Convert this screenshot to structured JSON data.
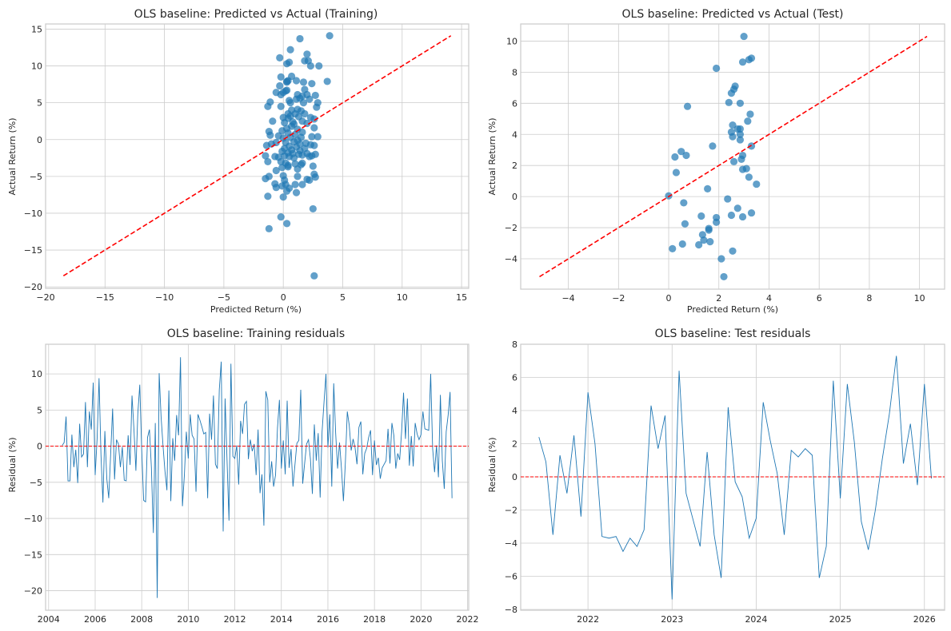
{
  "figure": {
    "background": "#ffffff",
    "colors": {
      "points": "#1f77b4",
      "reference": "#ff0000",
      "grid": "#cccccc"
    }
  },
  "chart_data": [
    {
      "id": "train-scatter",
      "type": "scatter",
      "title": "OLS baseline: Predicted vs Actual (Training)",
      "xlabel": "Predicted Return (%)",
      "ylabel": "Actual Return (%)",
      "xlim": [
        -20,
        15.6
      ],
      "ylim": [
        -20.2,
        15.7
      ],
      "xticks": [
        -20,
        -15,
        -10,
        -5,
        0,
        5,
        10,
        15
      ],
      "yticks": [
        -20,
        -15,
        -10,
        -5,
        0,
        5,
        10,
        15
      ],
      "grid": true,
      "reference_line": {
        "from": [
          -18.5,
          -18.5
        ],
        "to": [
          14.1,
          14.1
        ],
        "style": "dashed",
        "color": "#ff0000"
      },
      "points": [
        [
          3.9,
          14.1
        ],
        [
          1.4,
          13.7
        ],
        [
          0.6,
          12.2
        ],
        [
          2.0,
          11.6
        ],
        [
          -0.3,
          11.1
        ],
        [
          1.8,
          10.7
        ],
        [
          2.1,
          10.7
        ],
        [
          0.3,
          10.3
        ],
        [
          0.5,
          10.5
        ],
        [
          2.3,
          10.0
        ],
        [
          3.0,
          10.0
        ],
        [
          0.7,
          8.6
        ],
        [
          -0.2,
          8.5
        ],
        [
          1.7,
          7.8
        ],
        [
          3.7,
          7.9
        ],
        [
          0.3,
          7.9
        ],
        [
          0.3,
          7.8
        ],
        [
          2.4,
          7.6
        ],
        [
          1.1,
          8.0
        ],
        [
          0.4,
          8.0
        ],
        [
          -0.3,
          7.3
        ],
        [
          1.8,
          6.8
        ],
        [
          -0.6,
          6.4
        ],
        [
          0.2,
          6.6
        ],
        [
          0.0,
          6.4
        ],
        [
          0.3,
          6.7
        ],
        [
          -0.2,
          6.1
        ],
        [
          1.2,
          6.1
        ],
        [
          1.6,
          5.9
        ],
        [
          2.0,
          6.1
        ],
        [
          2.7,
          6.0
        ],
        [
          1.4,
          5.6
        ],
        [
          -1.3,
          4.5
        ],
        [
          -1.1,
          5.1
        ],
        [
          0.5,
          5.3
        ],
        [
          0.6,
          5.0
        ],
        [
          1.1,
          5.5
        ],
        [
          1.7,
          5.0
        ],
        [
          2.2,
          5.5
        ],
        [
          2.9,
          5.0
        ],
        [
          2.8,
          4.4
        ],
        [
          -0.2,
          4.5
        ],
        [
          0.7,
          4.0
        ],
        [
          1.2,
          4.1
        ],
        [
          1.5,
          3.9
        ],
        [
          1.0,
          3.5
        ],
        [
          0.4,
          3.5
        ],
        [
          0.0,
          3.0
        ],
        [
          0.6,
          3.2
        ],
        [
          1.3,
          3.1
        ],
        [
          1.8,
          3.5
        ],
        [
          2.3,
          3.0
        ],
        [
          2.6,
          2.8
        ],
        [
          0.4,
          2.9
        ],
        [
          0.8,
          2.4
        ],
        [
          -0.9,
          2.5
        ],
        [
          0.1,
          2.3
        ],
        [
          0.9,
          2.1
        ],
        [
          1.6,
          2.5
        ],
        [
          2.0,
          2.2
        ],
        [
          2.6,
          1.6
        ],
        [
          0.3,
          1.5
        ],
        [
          0.7,
          1.8
        ],
        [
          1.2,
          1.4
        ],
        [
          1.6,
          1.0
        ],
        [
          -0.1,
          1.2
        ],
        [
          -1.2,
          1.1
        ],
        [
          -1.1,
          0.6
        ],
        [
          0.4,
          0.9
        ],
        [
          1.0,
          0.7
        ],
        [
          1.5,
          0.3
        ],
        [
          2.4,
          0.4
        ],
        [
          2.9,
          0.4
        ],
        [
          -0.4,
          0.5
        ],
        [
          0.0,
          0.2
        ],
        [
          0.6,
          0.3
        ],
        [
          1.2,
          -0.1
        ],
        [
          -1.4,
          -0.8
        ],
        [
          -1.0,
          -0.6
        ],
        [
          -0.6,
          -0.4
        ],
        [
          0.2,
          -0.4
        ],
        [
          0.9,
          -0.3
        ],
        [
          1.4,
          -0.6
        ],
        [
          1.9,
          -0.5
        ],
        [
          2.3,
          -0.7
        ],
        [
          2.6,
          -0.8
        ],
        [
          0.5,
          -0.9
        ],
        [
          0.1,
          -1.2
        ],
        [
          0.7,
          -1.4
        ],
        [
          1.1,
          -1.0
        ],
        [
          1.4,
          -1.5
        ],
        [
          1.8,
          -1.2
        ],
        [
          -0.1,
          -1.6
        ],
        [
          0.4,
          -1.8
        ],
        [
          0.8,
          -1.9
        ],
        [
          1.3,
          -2.0
        ],
        [
          2.0,
          -1.9
        ],
        [
          2.7,
          -2.0
        ],
        [
          -1.5,
          -2.2
        ],
        [
          -0.7,
          -2.3
        ],
        [
          -0.4,
          -2.4
        ],
        [
          0.1,
          -2.2
        ],
        [
          0.5,
          -2.3
        ],
        [
          0.9,
          -2.5
        ],
        [
          1.6,
          -2.1
        ],
        [
          2.2,
          -2.3
        ],
        [
          2.4,
          -2.2
        ],
        [
          -1.3,
          -3.0
        ],
        [
          -0.2,
          -3.0
        ],
        [
          0.2,
          -3.2
        ],
        [
          0.4,
          -3.5
        ],
        [
          1.0,
          -3.3
        ],
        [
          1.5,
          -3.4
        ],
        [
          1.6,
          -3.2
        ],
        [
          -0.1,
          -3.8
        ],
        [
          0.4,
          -3.7
        ],
        [
          1.2,
          -4.0
        ],
        [
          -0.6,
          -4.2
        ],
        [
          2.5,
          -3.6
        ],
        [
          -1.2,
          -5.0
        ],
        [
          -1.5,
          -5.3
        ],
        [
          0.0,
          -4.9
        ],
        [
          0.1,
          -5.5
        ],
        [
          1.2,
          -5.0
        ],
        [
          2.0,
          -5.4
        ],
        [
          2.2,
          -5.5
        ],
        [
          2.6,
          -4.7
        ],
        [
          2.7,
          -5.1
        ],
        [
          -0.7,
          -6.0
        ],
        [
          -0.6,
          -6.5
        ],
        [
          -0.1,
          -6.3
        ],
        [
          0.2,
          -6.1
        ],
        [
          0.5,
          -6.6
        ],
        [
          1.0,
          -6.1
        ],
        [
          1.6,
          -6.1
        ],
        [
          0.3,
          -7.0
        ],
        [
          -1.3,
          -7.7
        ],
        [
          0.0,
          -7.8
        ],
        [
          1.1,
          -7.2
        ],
        [
          2.5,
          -9.4
        ],
        [
          -0.2,
          -10.5
        ],
        [
          0.3,
          -11.4
        ],
        [
          -1.2,
          -12.1
        ],
        [
          2.6,
          -18.5
        ]
      ]
    },
    {
      "id": "test-scatter",
      "type": "scatter",
      "title": "OLS baseline: Predicted vs Actual (Test)",
      "xlabel": "Predicted Return (%)",
      "ylabel": "Actual Return (%)",
      "xlim": [
        -5.9,
        11.0
      ],
      "ylim": [
        -5.95,
        11.1
      ],
      "xticks": [
        -4,
        -2,
        0,
        2,
        4,
        6,
        8,
        10
      ],
      "yticks": [
        -4,
        -2,
        0,
        2,
        4,
        6,
        8,
        10
      ],
      "grid": true,
      "reference_line": {
        "from": [
          -5.15,
          -5.15
        ],
        "to": [
          10.3,
          10.3
        ],
        "style": "dashed",
        "color": "#ff0000"
      },
      "points": [
        [
          3.0,
          10.3
        ],
        [
          3.3,
          8.9
        ],
        [
          3.2,
          8.8
        ],
        [
          2.95,
          8.65
        ],
        [
          1.9,
          8.25
        ],
        [
          2.65,
          7.1
        ],
        [
          2.6,
          6.9
        ],
        [
          2.5,
          6.65
        ],
        [
          2.4,
          6.05
        ],
        [
          2.85,
          6.0
        ],
        [
          0.75,
          5.8
        ],
        [
          3.25,
          5.3
        ],
        [
          3.15,
          4.85
        ],
        [
          2.55,
          4.6
        ],
        [
          2.75,
          4.35
        ],
        [
          2.85,
          4.35
        ],
        [
          2.5,
          4.15
        ],
        [
          2.85,
          4.0
        ],
        [
          2.55,
          3.85
        ],
        [
          2.85,
          3.65
        ],
        [
          1.75,
          3.25
        ],
        [
          3.3,
          3.25
        ],
        [
          0.5,
          2.9
        ],
        [
          0.7,
          2.65
        ],
        [
          0.25,
          2.55
        ],
        [
          2.95,
          2.65
        ],
        [
          2.9,
          2.4
        ],
        [
          2.6,
          2.25
        ],
        [
          3.1,
          1.8
        ],
        [
          2.95,
          1.75
        ],
        [
          0.3,
          1.55
        ],
        [
          3.2,
          1.25
        ],
        [
          3.5,
          0.8
        ],
        [
          1.55,
          0.5
        ],
        [
          0.0,
          0.05
        ],
        [
          2.35,
          -0.15
        ],
        [
          0.6,
          -0.4
        ],
        [
          2.75,
          -0.75
        ],
        [
          3.3,
          -1.05
        ],
        [
          1.3,
          -1.25
        ],
        [
          2.5,
          -1.2
        ],
        [
          2.95,
          -1.3
        ],
        [
          1.9,
          -1.35
        ],
        [
          1.9,
          -1.65
        ],
        [
          0.65,
          -1.75
        ],
        [
          1.6,
          -2.05
        ],
        [
          1.6,
          -2.15
        ],
        [
          1.35,
          -2.45
        ],
        [
          1.4,
          -2.8
        ],
        [
          1.65,
          -2.9
        ],
        [
          0.55,
          -3.05
        ],
        [
          1.2,
          -3.1
        ],
        [
          0.15,
          -3.35
        ],
        [
          2.55,
          -3.5
        ],
        [
          2.1,
          -4.0
        ],
        [
          2.2,
          -5.15
        ]
      ]
    },
    {
      "id": "train-residuals",
      "type": "line",
      "title": "OLS baseline: Training residuals",
      "xlabel": "",
      "ylabel": "Residual (%)",
      "x_start": "2004-08",
      "x_frequency": "monthly",
      "xlim": [
        2003.87,
        2022.05
      ],
      "ylim": [
        -22.7,
        14.1
      ],
      "xticks": [
        "2004",
        "2006",
        "2008",
        "2010",
        "2012",
        "2014",
        "2016",
        "2018",
        "2020",
        "2022"
      ],
      "yticks": [
        -20,
        -15,
        -10,
        -5,
        0,
        5,
        10
      ],
      "grid": true,
      "zero_line": {
        "y": 0,
        "style": "dashed",
        "color": "#ff0000"
      },
      "values": [
        0.1,
        0.5,
        4.1,
        -4.8,
        -4.8,
        1.6,
        -2.9,
        -0.5,
        -5.1,
        3.1,
        -1.5,
        -1.1,
        6.1,
        -2.9,
        4.8,
        2.3,
        8.8,
        -4.0,
        1.0,
        9.4,
        -1.2,
        -7.8,
        2.1,
        -4.5,
        -7.2,
        -1.0,
        5.2,
        -4.6,
        0.9,
        0.3,
        -2.9,
        -0.1,
        -4.7,
        -4.8,
        1.5,
        -2.6,
        7.0,
        2.3,
        -3.4,
        4.5,
        8.5,
        -0.5,
        -7.5,
        -7.7,
        1.2,
        2.3,
        -3.0,
        -12.0,
        3.2,
        -21.0,
        10.1,
        4.0,
        0.0,
        -3.5,
        -6.1,
        7.7,
        -7.6,
        1.1,
        -2.0,
        4.3,
        1.5,
        12.3,
        -8.3,
        -4.0,
        2.0,
        -1.7,
        4.4,
        1.5,
        1.0,
        -6.3,
        4.4,
        3.6,
        2.7,
        1.7,
        1.9,
        -7.2,
        4.5,
        0.9,
        7.0,
        -2.5,
        -3.1,
        7.8,
        11.7,
        -11.8,
        6.6,
        -2.0,
        -10.3,
        11.4,
        -1.4,
        -1.7,
        0.1,
        -5.3,
        3.5,
        1.7,
        5.8,
        6.2,
        -1.8,
        0.9,
        -0.7,
        0.3,
        -4.0,
        2.3,
        -6.5,
        -3.9,
        -11.0,
        7.6,
        6.4,
        -5.0,
        -2.1,
        -5.6,
        -4.0,
        2.5,
        6.4,
        -3.1,
        0.8,
        -3.9,
        6.3,
        -3.0,
        -0.4,
        -5.6,
        -2.6,
        0.4,
        0.8,
        7.8,
        -5.2,
        -2.4,
        0.3,
        0.9,
        -1.8,
        -6.6,
        3.0,
        -2.0,
        1.8,
        -7.1,
        2.0,
        6.1,
        10.0,
        -0.2,
        4.4,
        -5.6,
        8.7,
        1.8,
        -3.1,
        0.5,
        -3.1,
        -7.6,
        -2.3,
        4.8,
        2.9,
        -0.6,
        1.0,
        -0.2,
        -2.5,
        2.6,
        3.4,
        -3.9,
        -1.0,
        -0.3,
        1.2,
        2.2,
        -4.0,
        0.8,
        -2.6,
        -1.6,
        -4.5,
        -3.0,
        -2.5,
        -2.0,
        2.4,
        -2.4,
        3.2,
        1.5,
        -3.1,
        -1.0,
        -1.9,
        2.0,
        7.4,
        1.0,
        6.6,
        -2.7,
        1.4,
        -2.8,
        3.2,
        1.7,
        0.9,
        1.6,
        4.8,
        2.4,
        2.3,
        2.2,
        10.0,
        -0.3,
        -3.6,
        0.1,
        -4.3,
        7.1,
        -2.0,
        -5.9,
        2.0,
        4.3,
        7.5,
        -7.2
      ]
    },
    {
      "id": "test-residuals",
      "type": "line",
      "title": "OLS baseline: Test residuals",
      "xlabel": "",
      "ylabel": "Residual (%)",
      "x_start": "2021-06",
      "x_frequency": "monthly",
      "xlim": [
        2021.2,
        2026.24
      ],
      "ylim": [
        -8.05,
        8.0
      ],
      "xticks": [
        "2022",
        "2023",
        "2024",
        "2025",
        "2026"
      ],
      "yticks": [
        -8,
        -6,
        -4,
        -2,
        0,
        2,
        4,
        6,
        8
      ],
      "grid": true,
      "zero_line": {
        "y": 0,
        "style": "dashed",
        "color": "#ff0000"
      },
      "values": [
        2.4,
        0.9,
        -3.5,
        1.3,
        -1.0,
        2.5,
        -2.4,
        5.1,
        2.0,
        -3.6,
        -3.7,
        -3.6,
        -4.5,
        -3.7,
        -4.2,
        -3.2,
        4.3,
        1.7,
        3.7,
        -7.4,
        6.4,
        -1.0,
        -2.6,
        -4.2,
        1.5,
        -3.5,
        -6.1,
        4.2,
        -0.3,
        -1.2,
        -3.7,
        -2.5,
        4.5,
        2.2,
        0.2,
        -3.5,
        1.6,
        1.2,
        1.7,
        1.3,
        -6.1,
        -4.2,
        5.8,
        -1.3,
        5.6,
        2.1,
        -2.7,
        -4.4,
        -2.0,
        1.1,
        3.8,
        7.3,
        0.8,
        3.2,
        -0.5,
        5.6,
        -0.1
      ]
    }
  ]
}
